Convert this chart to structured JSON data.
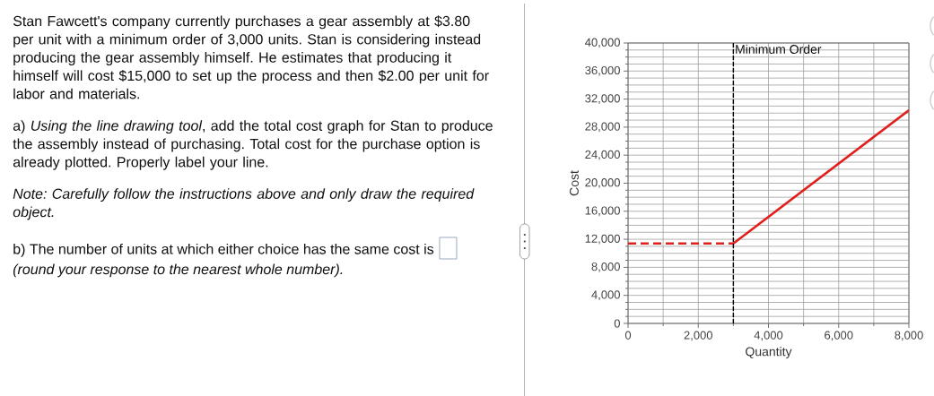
{
  "chart_data": {
    "type": "line",
    "xlabel": "Quantity",
    "ylabel": "Cost",
    "xlim": [
      0,
      8000
    ],
    "ylim": [
      0,
      40000
    ],
    "xticks": [
      0,
      {
        "value": 1000,
        "label": null
      },
      {
        "value": 2000,
        "label": "2,000"
      },
      {
        "value": 3000,
        "label": null
      },
      {
        "value": 4000,
        "label": "4,000"
      },
      {
        "value": 5000,
        "label": null
      },
      {
        "value": 6000,
        "label": "6,000"
      },
      {
        "value": 7000,
        "label": null
      },
      {
        "value": 8000,
        "label": "8,000"
      }
    ],
    "yticks": [
      0,
      {
        "value": 1000,
        "label": null
      },
      {
        "value": 2000,
        "label": null
      },
      {
        "value": 3000,
        "label": null
      },
      {
        "value": 4000,
        "label": "4,000"
      },
      {
        "value": 5000,
        "label": null
      },
      {
        "value": 6000,
        "label": null
      },
      {
        "value": 7000,
        "label": null
      },
      {
        "value": 8000,
        "label": "8,000"
      },
      {
        "value": 9000,
        "label": null
      },
      {
        "value": 10000,
        "label": null
      },
      {
        "value": 11000,
        "label": null
      },
      {
        "value": 12000,
        "label": "12,000"
      },
      {
        "value": 13000,
        "label": null
      },
      {
        "value": 14000,
        "label": null
      },
      {
        "value": 15000,
        "label": null
      },
      {
        "value": 16000,
        "label": "16,000"
      },
      {
        "value": 17000,
        "label": null
      },
      {
        "value": 18000,
        "label": null
      },
      {
        "value": 19000,
        "label": null
      },
      {
        "value": 20000,
        "label": "20,000"
      },
      {
        "value": 21000,
        "label": null
      },
      {
        "value": 22000,
        "label": null
      },
      {
        "value": 23000,
        "label": null
      },
      {
        "value": 24000,
        "label": "24,000"
      },
      {
        "value": 25000,
        "label": null
      },
      {
        "value": 26000,
        "label": null
      },
      {
        "value": 27000,
        "label": null
      },
      {
        "value": 28000,
        "label": "28,000"
      },
      {
        "value": 29000,
        "label": null
      },
      {
        "value": 30000,
        "label": null
      },
      {
        "value": 31000,
        "label": null
      },
      {
        "value": 32000,
        "label": "32,000"
      },
      {
        "value": 33000,
        "label": null
      },
      {
        "value": 34000,
        "label": null
      },
      {
        "value": 35000,
        "label": null
      },
      {
        "value": 36000,
        "label": "36,000"
      },
      {
        "value": 37000,
        "label": null
      },
      {
        "value": 38000,
        "label": null
      },
      {
        "value": 39000,
        "label": null
      },
      {
        "value": 40000,
        "label": "40,000"
      }
    ],
    "grid": true,
    "series": [
      {
        "color": "#e0201c",
        "x": [
          0,
          3000
        ],
        "values": [
          11400,
          11400
        ],
        "line_style": "dashed"
      },
      {
        "color": "#e0201c",
        "x": [
          3000,
          8000
        ],
        "values": [
          11400,
          30400
        ],
        "line_style": "solid"
      }
    ],
    "ref_lines": [
      {
        "axis": "x",
        "value": 3000,
        "label": "Minimum Order",
        "color": "#000000",
        "line_style": "dashed"
      }
    ],
    "annotations": [
      "Stan Fawcett's company currently purchases a gear assembly at $3.80 per unit with a minimum order of 3,000 units. Stan is considering instead producing the gear assembly himself. He estimates that producing it himself will cost $15,000 to set up the process and then $2.00 per unit for labor and materials.",
      "a) *Using the line drawing tool*, add the total cost graph for Stan to produce the assembly instead of purchasing. Total cost for the purchase option is already plotted. Properly label your line.",
      "Note: Carefully follow the instructions above and only draw the required object.",
      "b) The number of units at which either choice has the same cost is",
      "(round your response to the nearest whole number)."
    ]
  }
}
